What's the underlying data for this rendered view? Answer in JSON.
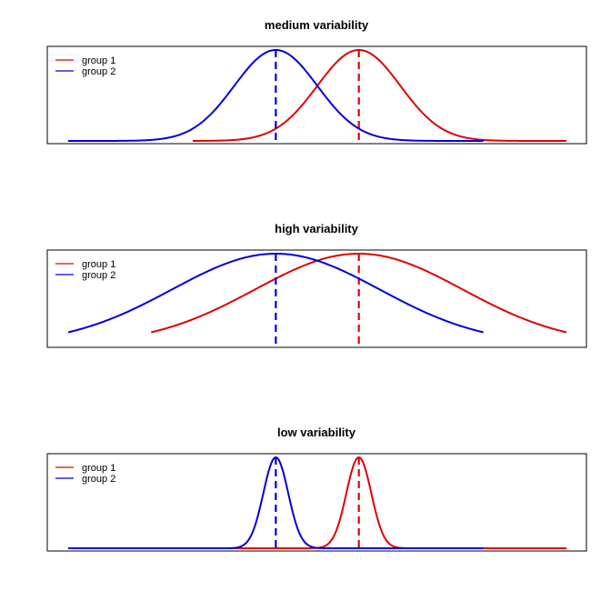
{
  "chart_data": [
    {
      "type": "line",
      "title": "medium variability",
      "xlabel": "",
      "ylabel": "",
      "axes_visible": false,
      "grid": false,
      "legend_position": "top-left",
      "series": [
        {
          "name": "group 1",
          "color": "#e00000",
          "distribution": "normal",
          "mean": 1.0,
          "sd": 0.5,
          "x_range": [
            -1.0,
            3.5
          ],
          "mean_line": "dashed"
        },
        {
          "name": "group 2",
          "color": "#0000e0",
          "distribution": "normal",
          "mean": 0.0,
          "sd": 0.5,
          "x_range": [
            -2.5,
            2.5
          ],
          "mean_line": "dashed"
        }
      ],
      "xlim": [
        -2.5,
        3.5
      ]
    },
    {
      "type": "line",
      "title": "high variability",
      "xlabel": "",
      "ylabel": "",
      "axes_visible": false,
      "grid": false,
      "legend_position": "top-left",
      "series": [
        {
          "name": "group 1",
          "color": "#e00000",
          "distribution": "normal",
          "mean": 1.0,
          "sd": 1.25,
          "x_range": [
            -1.5,
            3.5
          ],
          "mean_line": "dashed"
        },
        {
          "name": "group 2",
          "color": "#0000e0",
          "distribution": "normal",
          "mean": 0.0,
          "sd": 1.25,
          "x_range": [
            -2.5,
            2.5
          ],
          "mean_line": "dashed"
        }
      ],
      "xlim": [
        -2.5,
        3.5
      ]
    },
    {
      "type": "line",
      "title": "low variability",
      "xlabel": "",
      "ylabel": "",
      "axes_visible": false,
      "grid": false,
      "legend_position": "top-left",
      "series": [
        {
          "name": "group 1",
          "color": "#e00000",
          "distribution": "normal",
          "mean": 1.0,
          "sd": 0.15,
          "x_range": [
            -1.0,
            3.5
          ],
          "mean_line": "dashed"
        },
        {
          "name": "group 2",
          "color": "#0000e0",
          "distribution": "normal",
          "mean": 0.0,
          "sd": 0.15,
          "x_range": [
            -2.5,
            2.5
          ],
          "mean_line": "dashed"
        }
      ],
      "xlim": [
        -2.5,
        3.5
      ]
    }
  ]
}
